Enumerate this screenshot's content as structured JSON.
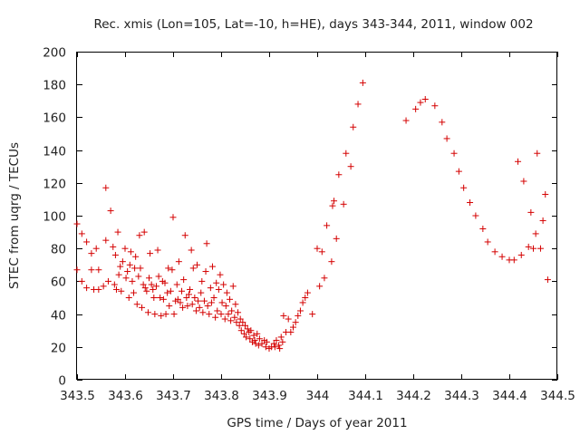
{
  "chart_data": {
    "type": "scatter",
    "title": "Rec. xmis (Lon=105, Lat=-10, h=HE), days 343-344, 2011, window 002",
    "xlabel": "GPS time / Days of year 2011",
    "ylabel": "STEC from uqrg / TECUs",
    "xlim": [
      343.5,
      344.5
    ],
    "ylim": [
      0,
      200
    ],
    "xticks": [
      343.5,
      343.6,
      343.7,
      343.8,
      343.9,
      344,
      344.1,
      344.2,
      344.3,
      344.4,
      344.5
    ],
    "xtick_labels": [
      "343.5",
      "343.6",
      "343.7",
      "343.8",
      "343.9",
      "344",
      "344.1",
      "344.2",
      "344.3",
      "344.4",
      "344.5"
    ],
    "yticks": [
      0,
      20,
      40,
      60,
      80,
      100,
      120,
      140,
      160,
      180,
      200
    ],
    "ytick_labels": [
      "0",
      "20",
      "40",
      "60",
      "80",
      "100",
      "120",
      "140",
      "160",
      "180",
      "200"
    ],
    "marker": "+",
    "marker_color": "#d40000",
    "grid": false,
    "series": [
      {
        "name": "STEC",
        "points": [
          [
            343.5,
            95
          ],
          [
            343.5,
            67
          ],
          [
            343.51,
            89
          ],
          [
            343.51,
            60
          ],
          [
            343.52,
            84
          ],
          [
            343.52,
            56
          ],
          [
            343.53,
            77
          ],
          [
            343.53,
            67
          ],
          [
            343.535,
            55
          ],
          [
            343.54,
            80
          ],
          [
            343.545,
            55
          ],
          [
            343.545,
            67
          ],
          [
            343.555,
            57
          ],
          [
            343.56,
            85
          ],
          [
            343.56,
            117
          ],
          [
            343.565,
            60
          ],
          [
            343.57,
            103
          ],
          [
            343.575,
            81
          ],
          [
            343.578,
            58
          ],
          [
            343.58,
            76
          ],
          [
            343.582,
            55
          ],
          [
            343.585,
            90
          ],
          [
            343.587,
            64
          ],
          [
            343.59,
            69
          ],
          [
            343.592,
            54
          ],
          [
            343.595,
            72
          ],
          [
            343.6,
            80
          ],
          [
            343.602,
            62
          ],
          [
            343.605,
            66
          ],
          [
            343.608,
            50
          ],
          [
            343.61,
            70
          ],
          [
            343.612,
            78
          ],
          [
            343.615,
            60
          ],
          [
            343.618,
            53
          ],
          [
            343.62,
            68
          ],
          [
            343.622,
            75
          ],
          [
            343.625,
            46
          ],
          [
            343.628,
            63
          ],
          [
            343.63,
            88
          ],
          [
            343.632,
            68
          ],
          [
            343.635,
            44
          ],
          [
            343.638,
            58
          ],
          [
            343.64,
            90
          ],
          [
            343.642,
            56
          ],
          [
            343.645,
            54
          ],
          [
            343.648,
            41
          ],
          [
            343.65,
            62
          ],
          [
            343.652,
            77
          ],
          [
            343.655,
            58
          ],
          [
            343.658,
            55
          ],
          [
            343.66,
            50
          ],
          [
            343.662,
            40
          ],
          [
            343.665,
            57
          ],
          [
            343.668,
            79
          ],
          [
            343.67,
            63
          ],
          [
            343.673,
            50
          ],
          [
            343.675,
            39
          ],
          [
            343.678,
            60
          ],
          [
            343.68,
            49
          ],
          [
            343.683,
            59
          ],
          [
            343.685,
            40
          ],
          [
            343.688,
            53
          ],
          [
            343.69,
            68
          ],
          [
            343.692,
            45
          ],
          [
            343.695,
            54
          ],
          [
            343.698,
            67
          ],
          [
            343.7,
            99
          ],
          [
            343.702,
            40
          ],
          [
            343.705,
            48
          ],
          [
            343.708,
            58
          ],
          [
            343.71,
            49
          ],
          [
            343.712,
            72
          ],
          [
            343.715,
            47
          ],
          [
            343.718,
            54
          ],
          [
            343.72,
            44
          ],
          [
            343.722,
            61
          ],
          [
            343.725,
            88
          ],
          [
            343.728,
            50
          ],
          [
            343.73,
            45
          ],
          [
            343.733,
            52
          ],
          [
            343.735,
            55
          ],
          [
            343.738,
            79
          ],
          [
            343.74,
            46
          ],
          [
            343.742,
            68
          ],
          [
            343.745,
            50
          ],
          [
            343.748,
            42
          ],
          [
            343.75,
            70
          ],
          [
            343.752,
            48
          ],
          [
            343.755,
            44
          ],
          [
            343.758,
            53
          ],
          [
            343.76,
            60
          ],
          [
            343.762,
            41
          ],
          [
            343.765,
            48
          ],
          [
            343.768,
            66
          ],
          [
            343.77,
            83
          ],
          [
            343.772,
            45
          ],
          [
            343.775,
            40
          ],
          [
            343.778,
            56
          ],
          [
            343.78,
            47
          ],
          [
            343.782,
            69
          ],
          [
            343.785,
            50
          ],
          [
            343.788,
            38
          ],
          [
            343.79,
            59
          ],
          [
            343.792,
            42
          ],
          [
            343.795,
            55
          ],
          [
            343.798,
            64
          ],
          [
            343.8,
            40
          ],
          [
            343.802,
            47
          ],
          [
            343.805,
            58
          ],
          [
            343.808,
            37
          ],
          [
            343.81,
            45
          ],
          [
            343.812,
            53
          ],
          [
            343.815,
            40
          ],
          [
            343.818,
            49
          ],
          [
            343.82,
            36
          ],
          [
            343.822,
            42
          ],
          [
            343.825,
            57
          ],
          [
            343.828,
            38
          ],
          [
            343.83,
            46
          ],
          [
            343.832,
            35
          ],
          [
            343.835,
            41
          ],
          [
            343.838,
            33
          ],
          [
            343.84,
            37
          ],
          [
            343.842,
            30
          ],
          [
            343.845,
            35
          ],
          [
            343.848,
            28
          ],
          [
            343.85,
            33
          ],
          [
            343.852,
            26
          ],
          [
            343.855,
            31
          ],
          [
            343.858,
            29
          ],
          [
            343.86,
            25
          ],
          [
            343.862,
            30
          ],
          [
            343.865,
            23
          ],
          [
            343.868,
            27
          ],
          [
            343.87,
            24
          ],
          [
            343.872,
            22
          ],
          [
            343.875,
            28
          ],
          [
            343.878,
            21
          ],
          [
            343.88,
            25
          ],
          [
            343.885,
            22
          ],
          [
            343.89,
            24
          ],
          [
            343.893,
            20
          ],
          [
            343.895,
            23
          ],
          [
            343.9,
            19
          ],
          [
            343.905,
            20
          ],
          [
            343.91,
            22
          ],
          [
            343.912,
            20
          ],
          [
            343.915,
            24
          ],
          [
            343.92,
            21
          ],
          [
            343.922,
            19
          ],
          [
            343.925,
            26
          ],
          [
            343.928,
            23
          ],
          [
            343.93,
            39
          ],
          [
            343.935,
            29
          ],
          [
            343.94,
            37
          ],
          [
            343.945,
            29
          ],
          [
            343.95,
            32
          ],
          [
            343.955,
            35
          ],
          [
            343.96,
            39
          ],
          [
            343.965,
            42
          ],
          [
            343.97,
            47
          ],
          [
            343.975,
            50
          ],
          [
            343.98,
            53
          ],
          [
            343.99,
            40
          ],
          [
            344.0,
            80
          ],
          [
            344.005,
            57
          ],
          [
            344.01,
            78
          ],
          [
            344.015,
            62
          ],
          [
            344.02,
            94
          ],
          [
            344.03,
            72
          ],
          [
            344.032,
            106
          ],
          [
            344.035,
            109
          ],
          [
            344.04,
            86
          ],
          [
            344.045,
            125
          ],
          [
            344.055,
            107
          ],
          [
            344.06,
            138
          ],
          [
            344.07,
            130
          ],
          [
            344.075,
            154
          ],
          [
            344.085,
            168
          ],
          [
            344.095,
            181
          ],
          [
            344.185,
            158
          ],
          [
            344.205,
            165
          ],
          [
            344.215,
            169
          ],
          [
            344.225,
            171
          ],
          [
            344.245,
            167
          ],
          [
            344.26,
            157
          ],
          [
            344.27,
            147
          ],
          [
            344.285,
            138
          ],
          [
            344.295,
            127
          ],
          [
            344.305,
            117
          ],
          [
            344.318,
            108
          ],
          [
            344.33,
            100
          ],
          [
            344.345,
            92
          ],
          [
            344.355,
            84
          ],
          [
            344.37,
            78
          ],
          [
            344.385,
            75
          ],
          [
            344.4,
            73
          ],
          [
            344.41,
            73
          ],
          [
            344.418,
            133
          ],
          [
            344.425,
            76
          ],
          [
            344.43,
            121
          ],
          [
            344.44,
            81
          ],
          [
            344.445,
            102
          ],
          [
            344.45,
            80
          ],
          [
            344.455,
            89
          ],
          [
            344.458,
            138
          ],
          [
            344.465,
            80
          ],
          [
            344.47,
            97
          ],
          [
            344.475,
            113
          ],
          [
            344.48,
            61
          ]
        ]
      }
    ]
  }
}
